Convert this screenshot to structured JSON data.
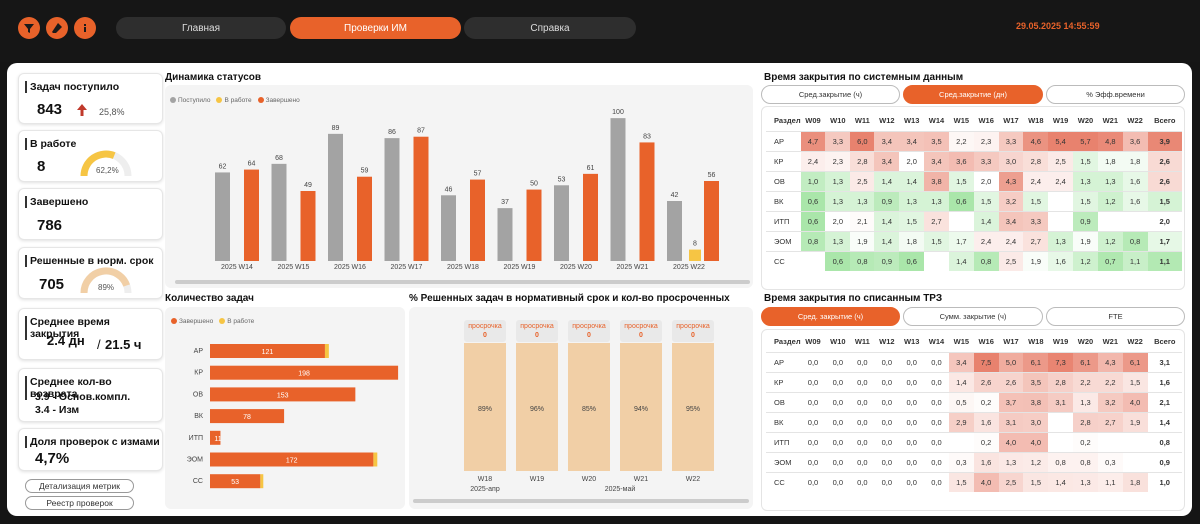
{
  "topbar": {
    "icons": [
      "filter-icon",
      "eraser-icon",
      "info-icon"
    ],
    "nav": [
      "Главная",
      "Проверки ИМ",
      "Справка"
    ],
    "active": 1,
    "datetime": "29.05.2025 14:55:59",
    "accent": "#e8622a"
  },
  "kpi": {
    "received": {
      "title": "Задач поступило",
      "value": "843",
      "change": "25,8%"
    },
    "inwork": {
      "title": "В работе",
      "value": "8",
      "gauge_pct": "62,2%",
      "gauge_fraction": 0.622
    },
    "done": {
      "title": "Завершено",
      "value": "786"
    },
    "ontime": {
      "title": "Решенные в норм. срок",
      "value": "705",
      "gauge_pct": "89%",
      "gauge_fraction": 0.89
    },
    "avgclose": {
      "title": "Среднее время закрытия",
      "value": "2.4 дн",
      "value2": "21.5 ч"
    },
    "avgreturn": {
      "title": "Среднее кол-во возврата",
      "line1": "3.9 - Основ.компл.",
      "line2": "3.4 - Изм"
    },
    "changes": {
      "title": "Доля проверок с измами",
      "value": "4,7%"
    },
    "btn_details": "Детализация метрик",
    "btn_registry": "Реестр проверок"
  },
  "status_chart": {
    "title": "Динамика статусов",
    "legend": [
      "Поступило",
      "В работе",
      "Завершено"
    ]
  },
  "tasks_chart": {
    "title": "Количество задач",
    "legend": [
      "Завершено",
      "В работе"
    ]
  },
  "pct_chart": {
    "title": "% Решенных задач в нормативный срок и кол-во просроченных",
    "overdue_label": "просрочка",
    "month_labels": [
      "2025-апр",
      "2025-май"
    ]
  },
  "chart_data": [
    {
      "type": "bar",
      "title": "Динамика статусов",
      "categories": [
        "2025 W14",
        "2025 W15",
        "2025 W16",
        "2025 W17",
        "2025 W18",
        "2025 W19",
        "2025 W20",
        "2025 W21",
        "2025 W22"
      ],
      "series": [
        {
          "name": "Поступило",
          "color": "#a3a3a3",
          "values": [
            62,
            68,
            89,
            86,
            46,
            37,
            53,
            100,
            42
          ]
        },
        {
          "name": "В работе",
          "color": "#f6c544",
          "values": [
            0,
            0,
            0,
            0,
            0,
            0,
            0,
            0,
            8
          ]
        },
        {
          "name": "Завершено",
          "color": "#e8622a",
          "values": [
            64,
            49,
            59,
            87,
            57,
            50,
            61,
            83,
            56
          ]
        }
      ],
      "ylim": [
        0,
        105
      ]
    },
    {
      "type": "bar",
      "title": "Количество задач",
      "orientation": "horizontal",
      "categories": [
        "АР",
        "КР",
        "ОВ",
        "ВК",
        "ИТП",
        "ЭОМ",
        "СС"
      ],
      "series": [
        {
          "name": "Завершено",
          "color": "#e8622a",
          "values": [
            121,
            198,
            153,
            78,
            11,
            172,
            53
          ]
        },
        {
          "name": "В работе",
          "color": "#f6c544",
          "values": [
            2,
            0,
            0,
            0,
            0,
            2,
            1
          ]
        }
      ],
      "xlim": [
        0,
        200
      ]
    },
    {
      "type": "bar",
      "title": "% Решенных задач в нормативный срок и кол-во просроченных",
      "categories": [
        "W18",
        "W19",
        "W20",
        "W21",
        "W22"
      ],
      "values": [
        89,
        96,
        85,
        94,
        95
      ],
      "labels": [
        "89%",
        "96%",
        "85%",
        "94%",
        "95%"
      ],
      "overdue": [
        0,
        0,
        0,
        0,
        0
      ]
    },
    {
      "type": "heatmap",
      "title": "Время закрытия по системным данным",
      "columns": [
        "W09",
        "W10",
        "W11",
        "W12",
        "W13",
        "W14",
        "W15",
        "W16",
        "W17",
        "W18",
        "W19",
        "W20",
        "W21",
        "W22"
      ],
      "total_label": "Всего",
      "row_header": "Раздел",
      "rows": [
        {
          "name": "АР",
          "values": [
            "4,7",
            "3,3",
            "6,0",
            "3,4",
            "3,4",
            "3,5",
            "2,2",
            "2,3",
            "3,3",
            "4,6",
            "5,4",
            "5,7",
            "4,8",
            "3,6"
          ],
          "total": "3,9"
        },
        {
          "name": "КР",
          "values": [
            "2,4",
            "2,3",
            "2,8",
            "3,4",
            "2,0",
            "3,4",
            "3,6",
            "3,3",
            "3,0",
            "2,8",
            "2,5",
            "1,5",
            "1,8",
            "1,8"
          ],
          "total": "2,6"
        },
        {
          "name": "ОВ",
          "values": [
            "1,0",
            "1,3",
            "2,5",
            "1,4",
            "1,4",
            "3,8",
            "1,5",
            "2,0",
            "4,3",
            "2,4",
            "2,4",
            "1,3",
            "1,3",
            "1,6"
          ],
          "total": "2,6"
        },
        {
          "name": "ВК",
          "values": [
            "0,6",
            "1,3",
            "1,3",
            "0,9",
            "1,3",
            "1,3",
            "0,6",
            "1,5",
            "3,2",
            "1,5",
            "",
            "1,5",
            "1,2",
            "1,6"
          ],
          "total": "1,5"
        },
        {
          "name": "ИТП",
          "values": [
            "0,6",
            "2,0",
            "2,1",
            "1,4",
            "1,5",
            "2,7",
            "",
            "1,4",
            "3,4",
            "3,3",
            "",
            "0,9",
            "",
            ""
          ],
          "total": "2,0"
        },
        {
          "name": "ЭОМ",
          "values": [
            "0,8",
            "1,3",
            "1,9",
            "1,4",
            "1,8",
            "1,5",
            "1,7",
            "2,4",
            "2,4",
            "2,7",
            "1,3",
            "1,9",
            "1,2",
            "0,8"
          ],
          "total": "1,7"
        },
        {
          "name": "СС",
          "values": [
            "",
            "0,6",
            "0,8",
            "0,9",
            "0,6",
            "",
            "1,4",
            "0,8",
            "2,5",
            "1,9",
            "1,6",
            "1,2",
            "0,7",
            "1,1"
          ],
          "total": "1,1"
        }
      ]
    },
    {
      "type": "heatmap",
      "title": "Время закрытия по списанным ТРЗ",
      "columns": [
        "W09",
        "W10",
        "W11",
        "W12",
        "W13",
        "W14",
        "W15",
        "W16",
        "W17",
        "W18",
        "W19",
        "W20",
        "W21",
        "W22"
      ],
      "total_label": "Всего",
      "row_header": "Раздел",
      "rows": [
        {
          "name": "АР",
          "values": [
            "0,0",
            "0,0",
            "0,0",
            "0,0",
            "0,0",
            "0,0",
            "3,4",
            "7,5",
            "5,0",
            "6,1",
            "7,3",
            "6,1",
            "4,3",
            "6,1"
          ],
          "total": "3,1"
        },
        {
          "name": "КР",
          "values": [
            "0,0",
            "0,0",
            "0,0",
            "0,0",
            "0,0",
            "0,0",
            "1,4",
            "2,6",
            "2,6",
            "3,5",
            "2,8",
            "2,2",
            "2,2",
            "1,5"
          ],
          "total": "1,6"
        },
        {
          "name": "ОВ",
          "values": [
            "0,0",
            "0,0",
            "0,0",
            "0,0",
            "0,0",
            "0,0",
            "0,5",
            "0,2",
            "3,7",
            "3,8",
            "3,1",
            "1,3",
            "3,2",
            "4,0"
          ],
          "total": "2,1"
        },
        {
          "name": "ВК",
          "values": [
            "0,0",
            "0,0",
            "0,0",
            "0,0",
            "0,0",
            "0,0",
            "2,9",
            "1,6",
            "3,1",
            "3,0",
            "",
            "2,8",
            "2,7",
            "1,9"
          ],
          "total": "1,4"
        },
        {
          "name": "ИТП",
          "values": [
            "0,0",
            "0,0",
            "0,0",
            "0,0",
            "0,0",
            "0,0",
            "",
            "0,2",
            "4,0",
            "4,0",
            "",
            "0,2",
            "",
            ""
          ],
          "total": "0,8"
        },
        {
          "name": "ЭОМ",
          "values": [
            "0,0",
            "0,0",
            "0,0",
            "0,0",
            "0,0",
            "0,0",
            "0,3",
            "1,6",
            "1,3",
            "1,2",
            "0,8",
            "0,8",
            "0,3",
            ""
          ],
          "total": "0,9"
        },
        {
          "name": "СС",
          "values": [
            "0,0",
            "0,0",
            "0,0",
            "0,0",
            "0,0",
            "0,0",
            "1,5",
            "4,0",
            "2,5",
            "1,5",
            "1,4",
            "1,3",
            "1,1",
            "1,8"
          ],
          "total": "1,0"
        }
      ]
    }
  ],
  "hm1": {
    "title": "Время закрытия по системным данным",
    "toggles": [
      "Сред.закрытие (ч)",
      "Сред.закрытие (дн)",
      "% Эфф.времени"
    ],
    "active": 1
  },
  "hm2": {
    "title": "Время закрытия по списанным ТРЗ",
    "toggles": [
      "Сред. закрытие (ч)",
      "Сумм. закрытие (ч)",
      "FTE"
    ],
    "active": 0
  }
}
